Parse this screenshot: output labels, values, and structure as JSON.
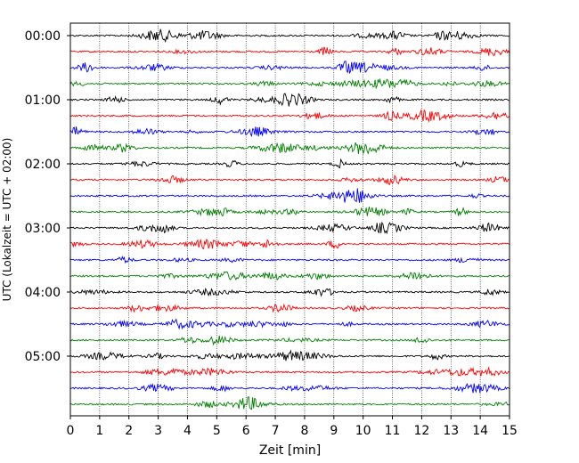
{
  "chart_data": {
    "type": "line",
    "title": "",
    "xlabel": "Zeit  [min]",
    "ylabel": "UTC (Lokalzeit = UTC + 02:00)",
    "xlim": [
      0,
      15
    ],
    "x_ticks": [
      "0",
      "1",
      "2",
      "3",
      "4",
      "5",
      "6",
      "7",
      "8",
      "9",
      "10",
      "11",
      "12",
      "13",
      "14",
      "15"
    ],
    "y_ticks": [
      "00:00",
      "01:00",
      "02:00",
      "03:00",
      "04:00",
      "05:00"
    ],
    "grid": "vertical dotted",
    "traces_per_hour": 4,
    "trace_colors": [
      "#000000",
      "#ff0000",
      "#0000ff",
      "#008000"
    ],
    "trace_count": 24,
    "trace_start_times": [
      "00:00",
      "00:15",
      "00:30",
      "00:45",
      "01:00",
      "01:15",
      "01:30",
      "01:45",
      "02:00",
      "02:15",
      "02:30",
      "02:45",
      "03:00",
      "03:15",
      "03:30",
      "03:45",
      "04:00",
      "04:15",
      "04:30",
      "04:45",
      "05:00",
      "05:15",
      "05:30",
      "05:45"
    ]
  }
}
